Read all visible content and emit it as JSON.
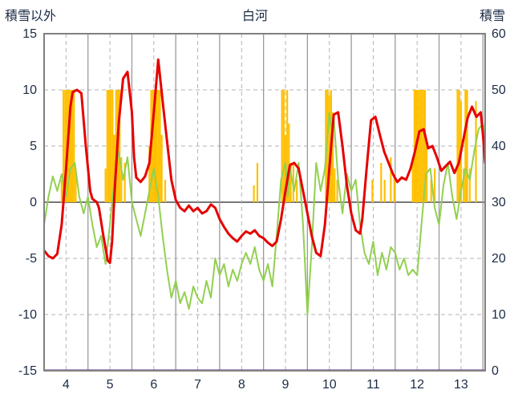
{
  "header": {
    "left_axis_label": "積雪以外",
    "title": "白河",
    "right_axis_label": "積雪"
  },
  "colors": {
    "temperature_line": "#e60000",
    "green_line": "#92d050",
    "sunshine_bar": "#ffc000",
    "snow_depth_line": "#7030a0",
    "border": "#808080",
    "grid_solid": "#9a9a9a",
    "grid_dashed": "#b3b3b3",
    "zero_line": "#777777",
    "tick_text": "#1c2b45"
  },
  "chart_data": {
    "type": "line",
    "title": "白河",
    "left_axis": {
      "label": "積雪以外",
      "min": -15,
      "max": 15,
      "ticks": [
        -15,
        -10,
        -5,
        0,
        5,
        10,
        15
      ]
    },
    "right_axis": {
      "label": "積雪",
      "min": 0,
      "max": 60,
      "ticks": [
        0,
        10,
        20,
        30,
        40,
        50,
        60
      ]
    },
    "x_axis": {
      "min": 3.5,
      "max": 13.55,
      "labels": [
        "4",
        "5",
        "6",
        "7",
        "8",
        "9",
        "10",
        "11",
        "12",
        "13"
      ],
      "label_positions": [
        4,
        5,
        6,
        7,
        8,
        9,
        10,
        11,
        12,
        13
      ],
      "solid_gridlines": [
        4.5,
        5.5,
        6.5,
        7.5,
        8.5,
        9.5,
        10.5,
        11.5,
        12.5,
        13.5
      ],
      "dashed_gridlines": [
        4,
        5,
        6,
        7,
        8,
        9,
        10,
        11,
        12,
        13
      ]
    },
    "series": [
      {
        "name": "sunshine-bars",
        "type": "bar",
        "axis": "left",
        "color": "#ffc000",
        "bar_width_days": 0.04,
        "points": [
          [
            3.9,
            2
          ],
          [
            3.94,
            10
          ],
          [
            3.98,
            10
          ],
          [
            4.02,
            10
          ],
          [
            4.06,
            10
          ],
          [
            4.1,
            10
          ],
          [
            4.14,
            10
          ],
          [
            4.18,
            10
          ],
          [
            4.22,
            3
          ],
          [
            4.9,
            3
          ],
          [
            4.94,
            10
          ],
          [
            4.98,
            10
          ],
          [
            5.02,
            10
          ],
          [
            5.06,
            10
          ],
          [
            5.1,
            6
          ],
          [
            5.14,
            10
          ],
          [
            5.18,
            10
          ],
          [
            5.22,
            10
          ],
          [
            5.26,
            4
          ],
          [
            5.34,
            3.5
          ],
          [
            5.9,
            5
          ],
          [
            5.94,
            10
          ],
          [
            5.98,
            10
          ],
          [
            6.02,
            10
          ],
          [
            6.06,
            10
          ],
          [
            6.1,
            10
          ],
          [
            6.14,
            10
          ],
          [
            6.18,
            6
          ],
          [
            6.26,
            2
          ],
          [
            8.28,
            1.5
          ],
          [
            8.36,
            3.5
          ],
          [
            8.92,
            10
          ],
          [
            8.96,
            10
          ],
          [
            9.0,
            6
          ],
          [
            9.04,
            10
          ],
          [
            9.08,
            7
          ],
          [
            9.12,
            3.5
          ],
          [
            9.18,
            3.5
          ],
          [
            9.26,
            2
          ],
          [
            9.92,
            10
          ],
          [
            9.96,
            10
          ],
          [
            10.0,
            9.5
          ],
          [
            10.04,
            10
          ],
          [
            10.08,
            8
          ],
          [
            10.12,
            3
          ],
          [
            10.18,
            2
          ],
          [
            10.98,
            2
          ],
          [
            11.18,
            3.5
          ],
          [
            11.26,
            2
          ],
          [
            11.4,
            4
          ],
          [
            11.48,
            2.5
          ],
          [
            11.9,
            4
          ],
          [
            11.94,
            10
          ],
          [
            11.98,
            10
          ],
          [
            12.02,
            10
          ],
          [
            12.06,
            10
          ],
          [
            12.1,
            10
          ],
          [
            12.14,
            10
          ],
          [
            12.18,
            10
          ],
          [
            12.22,
            5
          ],
          [
            12.32,
            2
          ],
          [
            12.4,
            3
          ],
          [
            12.92,
            10
          ],
          [
            12.96,
            10
          ],
          [
            13.0,
            9
          ],
          [
            13.06,
            3
          ],
          [
            13.1,
            10
          ],
          [
            13.14,
            10
          ],
          [
            13.2,
            3
          ],
          [
            13.34,
            9
          ]
        ]
      },
      {
        "name": "green-line",
        "type": "line",
        "axis": "left",
        "color": "#92d050",
        "width": 2,
        "points": [
          [
            3.5,
            -2.0
          ],
          [
            3.6,
            0.5
          ],
          [
            3.7,
            2.3
          ],
          [
            3.8,
            1.0
          ],
          [
            3.9,
            2.5
          ],
          [
            4.0,
            0.5
          ],
          [
            4.1,
            3.0
          ],
          [
            4.2,
            3.5
          ],
          [
            4.3,
            0.5
          ],
          [
            4.4,
            -1.0
          ],
          [
            4.5,
            0.5
          ],
          [
            4.6,
            -2.0
          ],
          [
            4.7,
            -4.0
          ],
          [
            4.8,
            -3.0
          ],
          [
            4.9,
            -5.5
          ],
          [
            5.0,
            -2.0
          ],
          [
            5.1,
            2.0
          ],
          [
            5.2,
            4.5
          ],
          [
            5.3,
            2.0
          ],
          [
            5.4,
            4.0
          ],
          [
            5.5,
            0.0
          ],
          [
            5.6,
            -1.5
          ],
          [
            5.7,
            -3.0
          ],
          [
            5.8,
            -1.0
          ],
          [
            5.9,
            1.0
          ],
          [
            6.0,
            3.0
          ],
          [
            6.1,
            0.5
          ],
          [
            6.2,
            -3.0
          ],
          [
            6.3,
            -6.0
          ],
          [
            6.4,
            -8.5
          ],
          [
            6.5,
            -7.0
          ],
          [
            6.6,
            -9.0
          ],
          [
            6.7,
            -8.0
          ],
          [
            6.8,
            -9.5
          ],
          [
            6.9,
            -7.5
          ],
          [
            7.0,
            -8.5
          ],
          [
            7.1,
            -9.0
          ],
          [
            7.2,
            -7.0
          ],
          [
            7.3,
            -8.5
          ],
          [
            7.4,
            -5.0
          ],
          [
            7.5,
            -6.5
          ],
          [
            7.6,
            -5.5
          ],
          [
            7.7,
            -7.5
          ],
          [
            7.8,
            -6.0
          ],
          [
            7.9,
            -7.0
          ],
          [
            8.0,
            -5.5
          ],
          [
            8.1,
            -4.5
          ],
          [
            8.2,
            -5.5
          ],
          [
            8.3,
            -4.0
          ],
          [
            8.4,
            -6.0
          ],
          [
            8.5,
            -7.0
          ],
          [
            8.6,
            -5.5
          ],
          [
            8.7,
            -7.5
          ],
          [
            8.8,
            -3.0
          ],
          [
            8.9,
            2.0
          ],
          [
            9.0,
            3.5
          ],
          [
            9.05,
            0.5
          ],
          [
            9.1,
            3.0
          ],
          [
            9.2,
            1.0
          ],
          [
            9.3,
            3.5
          ],
          [
            9.4,
            -2.0
          ],
          [
            9.5,
            -10.0
          ],
          [
            9.6,
            -4.0
          ],
          [
            9.7,
            3.5
          ],
          [
            9.8,
            1.0
          ],
          [
            9.9,
            3.0
          ],
          [
            10.0,
            8.0
          ],
          [
            10.05,
            6.5
          ],
          [
            10.1,
            7.5
          ],
          [
            10.2,
            2.0
          ],
          [
            10.3,
            -1.0
          ],
          [
            10.4,
            2.5
          ],
          [
            10.5,
            1.0
          ],
          [
            10.6,
            2.0
          ],
          [
            10.7,
            -2.0
          ],
          [
            10.8,
            -4.5
          ],
          [
            10.9,
            -5.5
          ],
          [
            11.0,
            -3.5
          ],
          [
            11.1,
            -6.5
          ],
          [
            11.2,
            -4.5
          ],
          [
            11.3,
            -6.0
          ],
          [
            11.4,
            -4.0
          ],
          [
            11.5,
            -4.5
          ],
          [
            11.6,
            -6.0
          ],
          [
            11.7,
            -5.0
          ],
          [
            11.8,
            -6.5
          ],
          [
            11.9,
            -6.0
          ],
          [
            12.0,
            -6.5
          ],
          [
            12.1,
            -2.0
          ],
          [
            12.2,
            2.5
          ],
          [
            12.3,
            3.0
          ],
          [
            12.4,
            -0.5
          ],
          [
            12.5,
            -2.0
          ],
          [
            12.6,
            1.5
          ],
          [
            12.7,
            3.5
          ],
          [
            12.8,
            0.5
          ],
          [
            12.9,
            -1.5
          ],
          [
            13.0,
            1.0
          ],
          [
            13.1,
            3.0
          ],
          [
            13.2,
            2.0
          ],
          [
            13.3,
            4.5
          ],
          [
            13.4,
            6.5
          ],
          [
            13.5,
            7.0
          ],
          [
            13.55,
            6.0
          ]
        ]
      },
      {
        "name": "temperature-line",
        "type": "line",
        "axis": "left",
        "color": "#e60000",
        "width": 3,
        "points": [
          [
            3.5,
            -4.3
          ],
          [
            3.6,
            -4.8
          ],
          [
            3.7,
            -5.0
          ],
          [
            3.8,
            -4.6
          ],
          [
            3.9,
            -2.0
          ],
          [
            4.0,
            3.0
          ],
          [
            4.1,
            8.5
          ],
          [
            4.15,
            9.8
          ],
          [
            4.25,
            10.0
          ],
          [
            4.35,
            9.7
          ],
          [
            4.45,
            5.0
          ],
          [
            4.55,
            1.0
          ],
          [
            4.6,
            0.3
          ],
          [
            4.7,
            0.0
          ],
          [
            4.75,
            -0.5
          ],
          [
            4.85,
            -3.0
          ],
          [
            4.95,
            -5.2
          ],
          [
            5.0,
            -5.4
          ],
          [
            5.05,
            -3.5
          ],
          [
            5.1,
            0.5
          ],
          [
            5.2,
            7.0
          ],
          [
            5.3,
            11.0
          ],
          [
            5.4,
            11.6
          ],
          [
            5.5,
            8.0
          ],
          [
            5.55,
            4.0
          ],
          [
            5.6,
            2.2
          ],
          [
            5.7,
            1.8
          ],
          [
            5.8,
            2.3
          ],
          [
            5.9,
            3.5
          ],
          [
            6.0,
            8.0
          ],
          [
            6.1,
            12.7
          ],
          [
            6.2,
            9.0
          ],
          [
            6.3,
            5.5
          ],
          [
            6.4,
            2.0
          ],
          [
            6.5,
            0.2
          ],
          [
            6.6,
            -0.5
          ],
          [
            6.7,
            -0.8
          ],
          [
            6.8,
            -0.3
          ],
          [
            6.9,
            -0.8
          ],
          [
            7.0,
            -0.5
          ],
          [
            7.1,
            -1.0
          ],
          [
            7.2,
            -0.8
          ],
          [
            7.3,
            -0.2
          ],
          [
            7.4,
            -0.5
          ],
          [
            7.5,
            -1.5
          ],
          [
            7.6,
            -2.2
          ],
          [
            7.7,
            -2.8
          ],
          [
            7.8,
            -3.2
          ],
          [
            7.9,
            -3.5
          ],
          [
            8.0,
            -3.0
          ],
          [
            8.1,
            -2.6
          ],
          [
            8.2,
            -2.8
          ],
          [
            8.3,
            -2.5
          ],
          [
            8.4,
            -3.0
          ],
          [
            8.5,
            -3.2
          ],
          [
            8.6,
            -3.6
          ],
          [
            8.7,
            -3.9
          ],
          [
            8.8,
            -3.5
          ],
          [
            8.9,
            -1.5
          ],
          [
            9.0,
            1.0
          ],
          [
            9.1,
            3.3
          ],
          [
            9.2,
            3.5
          ],
          [
            9.3,
            3.0
          ],
          [
            9.4,
            1.0
          ],
          [
            9.5,
            -1.0
          ],
          [
            9.6,
            -3.0
          ],
          [
            9.7,
            -4.5
          ],
          [
            9.8,
            -4.8
          ],
          [
            9.9,
            -2.0
          ],
          [
            10.0,
            3.0
          ],
          [
            10.1,
            7.8
          ],
          [
            10.2,
            8.0
          ],
          [
            10.3,
            5.0
          ],
          [
            10.4,
            1.5
          ],
          [
            10.5,
            -1.0
          ],
          [
            10.6,
            -2.5
          ],
          [
            10.7,
            -2.8
          ],
          [
            10.75,
            -1.5
          ],
          [
            10.85,
            3.0
          ],
          [
            10.95,
            7.3
          ],
          [
            11.05,
            7.6
          ],
          [
            11.15,
            6.0
          ],
          [
            11.25,
            4.5
          ],
          [
            11.35,
            3.5
          ],
          [
            11.45,
            2.5
          ],
          [
            11.55,
            1.8
          ],
          [
            11.65,
            2.2
          ],
          [
            11.75,
            2.0
          ],
          [
            11.85,
            3.0
          ],
          [
            11.95,
            4.5
          ],
          [
            12.05,
            6.3
          ],
          [
            12.15,
            6.5
          ],
          [
            12.25,
            4.8
          ],
          [
            12.35,
            5.0
          ],
          [
            12.45,
            4.0
          ],
          [
            12.55,
            2.8
          ],
          [
            12.65,
            3.2
          ],
          [
            12.75,
            3.6
          ],
          [
            12.85,
            2.6
          ],
          [
            12.95,
            3.5
          ],
          [
            13.05,
            5.5
          ],
          [
            13.15,
            7.5
          ],
          [
            13.25,
            8.5
          ],
          [
            13.35,
            7.6
          ],
          [
            13.45,
            8.0
          ],
          [
            13.5,
            6.0
          ],
          [
            13.55,
            3.5
          ]
        ]
      },
      {
        "name": "snow-depth-line",
        "type": "line",
        "axis": "right",
        "color": "#7030a0",
        "width": 3,
        "points": [
          [
            3.5,
            0
          ],
          [
            13.55,
            0
          ]
        ]
      }
    ]
  }
}
